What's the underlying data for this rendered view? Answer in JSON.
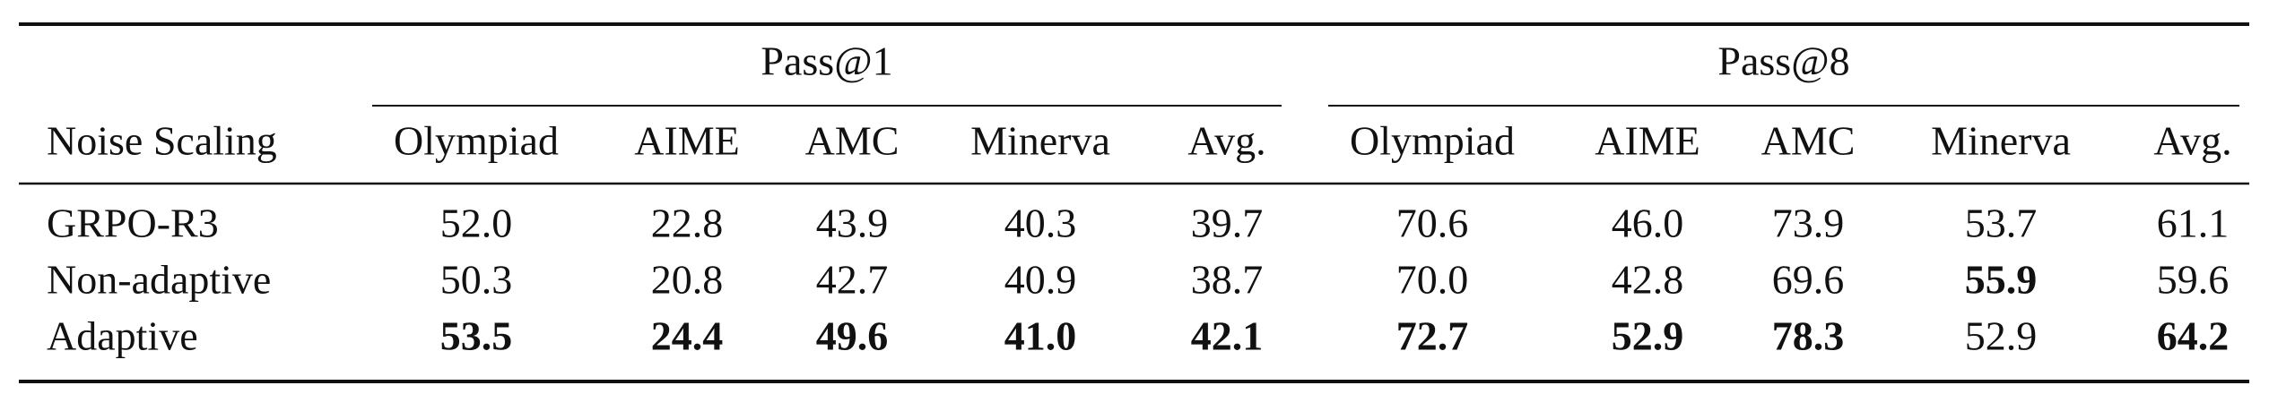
{
  "table": {
    "groups": [
      "Pass@1",
      "Pass@8"
    ],
    "header": [
      "Noise Scaling",
      "Olympiad",
      "AIME",
      "AMC",
      "Minerva",
      "Avg.",
      "Olympiad",
      "AIME",
      "AMC",
      "Minerva",
      "Avg."
    ],
    "rows": [
      {
        "cells": [
          "GRPO-R3",
          "52.0",
          "22.8",
          "43.9",
          "40.3",
          "39.7",
          "70.6",
          "46.0",
          "73.9",
          "53.7",
          "61.1"
        ],
        "bold": [
          false,
          false,
          false,
          false,
          false,
          false,
          false,
          false,
          false,
          false,
          false
        ]
      },
      {
        "cells": [
          "Non-adaptive",
          "50.3",
          "20.8",
          "42.7",
          "40.9",
          "38.7",
          "70.0",
          "42.8",
          "69.6",
          "55.9",
          "59.6"
        ],
        "bold": [
          false,
          false,
          false,
          false,
          false,
          false,
          false,
          false,
          false,
          true,
          false
        ]
      },
      {
        "cells": [
          "Adaptive",
          "53.5",
          "24.4",
          "49.6",
          "41.0",
          "42.1",
          "72.7",
          "52.9",
          "78.3",
          "52.9",
          "64.2"
        ],
        "bold": [
          false,
          true,
          true,
          true,
          true,
          true,
          true,
          true,
          true,
          false,
          true
        ]
      }
    ]
  }
}
